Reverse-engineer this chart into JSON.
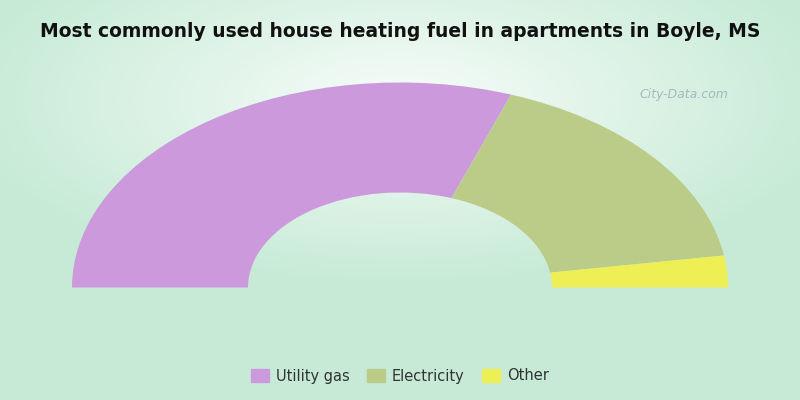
{
  "title": "Most commonly used house heating fuel in apartments in Boyle, MS",
  "title_fontsize": 13.5,
  "segments": [
    {
      "label": "Utility gas",
      "value": 61,
      "color": "#cc99dd"
    },
    {
      "label": "Electricity",
      "value": 34,
      "color": "#bbcc88"
    },
    {
      "label": "Other",
      "value": 5,
      "color": "#eeee55"
    }
  ],
  "outer_bg": "#00eeff",
  "legend_colors": [
    "#cc99dd",
    "#bbcc88",
    "#eeee55"
  ],
  "legend_labels": [
    "Utility gas",
    "Electricity",
    "Other"
  ],
  "watermark": "City-Data.com",
  "inner_r": 0.38,
  "outer_r": 0.82
}
